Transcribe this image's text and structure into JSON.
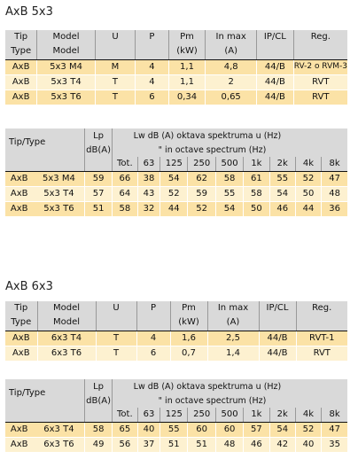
{
  "sections": [
    {
      "title": "AxB 5x3",
      "spec_table": {
        "header_row1": [
          "Tip",
          "Model",
          "U",
          "P",
          "Pm",
          "In max",
          "IP/CL",
          "Reg."
        ],
        "header_row2": [
          "Type",
          "Model",
          "",
          "",
          "(kW)",
          "(A)",
          "",
          ""
        ],
        "rows": [
          [
            "AxB",
            "5x3 M4",
            "M",
            "4",
            "1,1",
            "4,8",
            "44/B",
            "RV-2 o RVM-3"
          ],
          [
            "AxB",
            "5x3 T4",
            "T",
            "4",
            "1,1",
            "2",
            "44/B",
            "RVT"
          ],
          [
            "AxB",
            "5x3 T6",
            "T",
            "6",
            "0,34",
            "0,65",
            "44/B",
            "RVT"
          ]
        ]
      },
      "sound_table": {
        "label": "Tip/Type",
        "lp": "Lp",
        "lp_unit": "dB(A)",
        "lw_line1": "Lw dB (A) oktava spektruma u (Hz)",
        "lw_line2": "\"        in octave spectrum (Hz)",
        "bands": [
          "Tot.",
          "63",
          "125",
          "250",
          "500",
          "1k",
          "2k",
          "4k",
          "8k"
        ],
        "rows": [
          [
            "AxB",
            "5x3 M4",
            "59",
            "66",
            "38",
            "54",
            "62",
            "58",
            "61",
            "55",
            "52",
            "47"
          ],
          [
            "AxB",
            "5x3 T4",
            "57",
            "64",
            "43",
            "52",
            "59",
            "55",
            "58",
            "54",
            "50",
            "48"
          ],
          [
            "AxB",
            "5x3 T6",
            "51",
            "58",
            "32",
            "44",
            "52",
            "54",
            "50",
            "46",
            "44",
            "36"
          ]
        ]
      }
    },
    {
      "title": "AxB 6x3",
      "spec_table": {
        "header_row1": [
          "Tip",
          "Model",
          "U",
          "P",
          "Pm",
          "In max",
          "IP/CL",
          "Reg."
        ],
        "header_row2": [
          "Type",
          "Model",
          "",
          "",
          "(kW)",
          "(A)",
          "",
          ""
        ],
        "rows": [
          [
            "AxB",
            "6x3 T4",
            "T",
            "4",
            "1,6",
            "2,5",
            "44/B",
            "RVT-1"
          ],
          [
            "AxB",
            "6x3 T6",
            "T",
            "6",
            "0,7",
            "1,4",
            "44/B",
            "RVT"
          ]
        ]
      },
      "sound_table": {
        "label": "Tip/Type",
        "lp": "Lp",
        "lp_unit": "dB(A)",
        "lw_line1": "Lw dB (A) oktava spektruma u (Hz)",
        "lw_line2": "\"        in octave spectrum (Hz)",
        "bands": [
          "Tot.",
          "63",
          "125",
          "250",
          "500",
          "1k",
          "2k",
          "4k",
          "8k"
        ],
        "rows": [
          [
            "AxB",
            "6x3 T4",
            "58",
            "65",
            "40",
            "55",
            "60",
            "60",
            "57",
            "54",
            "52",
            "47"
          ],
          [
            "AxB",
            "6x3 T6",
            "49",
            "56",
            "37",
            "51",
            "51",
            "48",
            "46",
            "42",
            "40",
            "35"
          ]
        ]
      }
    }
  ]
}
